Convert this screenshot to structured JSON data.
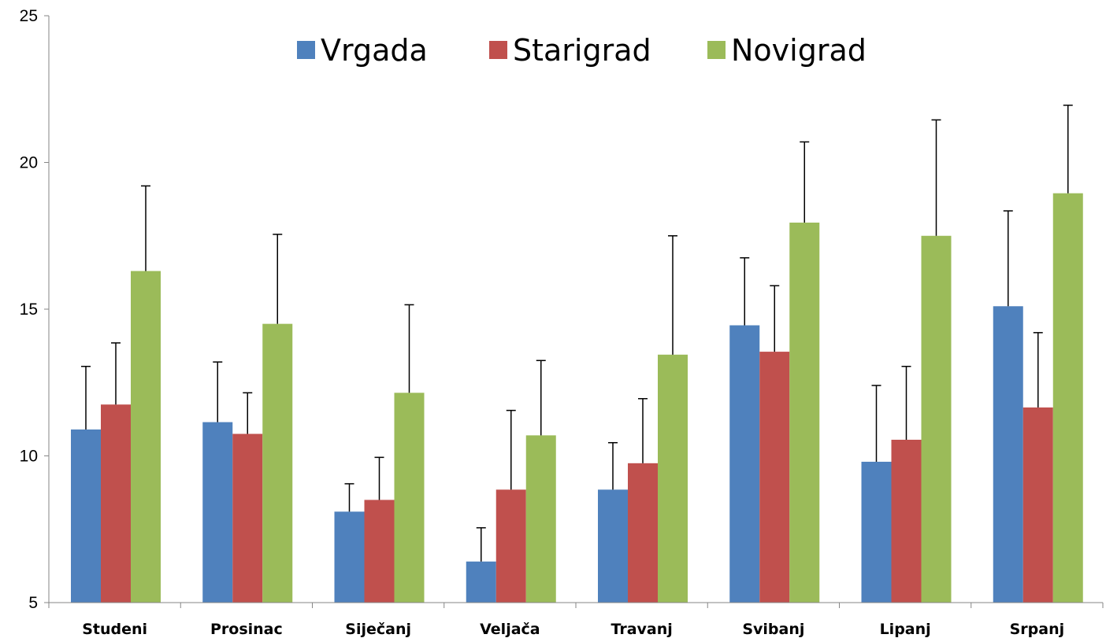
{
  "chart_data": {
    "type": "bar",
    "title": "",
    "xlabel": "",
    "ylabel": "",
    "ylim": [
      5,
      25
    ],
    "yticks": [
      5,
      10,
      15,
      20,
      25
    ],
    "grid": false,
    "legend_position": "top",
    "categories": [
      "Studeni",
      "Prosinac",
      "Siječanj",
      "Veljača",
      "Travanj",
      "Svibanj",
      "Lipanj",
      "Srpanj"
    ],
    "series": [
      {
        "name": "Vrgada",
        "color": "#4F81BD",
        "values": [
          10.9,
          11.15,
          8.1,
          6.4,
          8.85,
          14.45,
          9.8,
          15.1
        ],
        "error_plus": [
          2.15,
          2.05,
          0.95,
          1.15,
          1.6,
          2.3,
          2.6,
          3.25
        ]
      },
      {
        "name": "Starigrad",
        "color": "#C0504D",
        "values": [
          11.75,
          10.75,
          8.5,
          8.85,
          9.75,
          13.55,
          10.55,
          11.65
        ],
        "error_plus": [
          2.1,
          1.4,
          1.45,
          2.7,
          2.2,
          2.25,
          2.5,
          2.55
        ]
      },
      {
        "name": "Novigrad",
        "color": "#9BBB59",
        "values": [
          16.3,
          14.5,
          12.15,
          10.7,
          13.45,
          17.95,
          17.5,
          18.95
        ],
        "error_plus": [
          2.9,
          3.05,
          3.0,
          2.55,
          4.05,
          2.75,
          3.95,
          3.0
        ]
      }
    ]
  }
}
